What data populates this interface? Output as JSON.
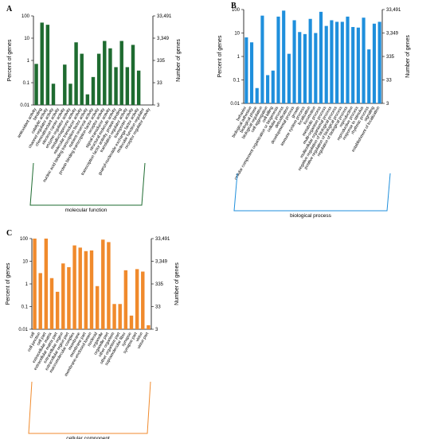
{
  "chart_data": [
    {
      "panel": "A",
      "type": "bar",
      "color": "#1e6b30",
      "ylabel_left": "Percent of genes",
      "ylabel_right": "Number of genes",
      "yscale": "log",
      "ylim": [
        0.01,
        100
      ],
      "yticks_left": [
        "100",
        "10",
        "1",
        "0.1",
        "0.01"
      ],
      "yticks_right": [
        "33,491",
        "3,349",
        "335",
        "33",
        "3"
      ],
      "group_label": "molecular function",
      "categories": [
        "antioxidant activity",
        "binding",
        "catalytic activity",
        "channel regulator activity",
        "chemoattractant activity",
        "electron carrier activity",
        "enzyme regulator activity",
        "metallochaperone activity",
        "molecular transducer activity",
        "nucleic acid binding transcription factor activity",
        "nutrient reservoir activity",
        "protein binding transcription factor activity",
        "receptor activity",
        "signal transducer activity",
        "structural molecule activity",
        "transcription factor activity, protein binding",
        "translation regulator activity",
        "transporter activity",
        "guanyl-nucleotide exchange factor activity",
        "molecular function regulator",
        "receptor regulator activity"
      ],
      "values": [
        0.7,
        50,
        40,
        0.09,
        0.01,
        0.65,
        0.09,
        6.5,
        2,
        0.03,
        0.18,
        2,
        7.5,
        3.5,
        0.5,
        7.5,
        0.5,
        5,
        0.35,
        0.01,
        0.01
      ]
    },
    {
      "panel": "B",
      "type": "bar",
      "color": "#1f8fdc",
      "ylabel_left": "Percent of genes",
      "ylabel_right": "Number of genes",
      "yscale": "log",
      "ylim": [
        0.01,
        100
      ],
      "yticks_left": [
        "100",
        "10",
        "1",
        "0.1",
        "0.01"
      ],
      "yticks_right": [
        "33,491",
        "3,349",
        "335",
        "33",
        "3"
      ],
      "group_label": "biological process",
      "categories": [
        "behavior",
        "biological adhesion",
        "biological phase",
        "biological regulation",
        "cell aggregation",
        "cell killing",
        "cellular component organization or biogenesis",
        "cellular process",
        "detoxification",
        "developmental process",
        "growth",
        "immune system process",
        "localization",
        "locomotion",
        "metabolic process",
        "multi-organism process",
        "multicellular organismal process",
        "negative regulation of biological process",
        "positive regulation of biological process",
        "regulation of biological process",
        "reproduction",
        "reproductive process",
        "response to stimulus",
        "rhythmic process",
        "signaling",
        "establishment of localization"
      ],
      "values": [
        6.5,
        4,
        0.045,
        55,
        0.16,
        0.25,
        50,
        90,
        1.3,
        35,
        11,
        9,
        40,
        10,
        80,
        20,
        35,
        30,
        30,
        50,
        18,
        17,
        45,
        2,
        25,
        30
      ]
    },
    {
      "panel": "C",
      "type": "bar",
      "color": "#f08a2c",
      "ylabel_left": "Percent of genes",
      "ylabel_right": "Number of genes",
      "yscale": "log",
      "ylim": [
        0.01,
        100
      ],
      "yticks_left": [
        "100",
        "10",
        "1",
        "0.1",
        "0.01"
      ],
      "yticks_right": [
        "33,491",
        "3,349",
        "335",
        "33",
        "3"
      ],
      "group_label": "cellular component",
      "categories": [
        "cell",
        "cell junction",
        "cell part",
        "extracellular matrix",
        "extracellular matrix part",
        "extracellular region",
        "extracellular region part",
        "macromolecular complex",
        "membrane",
        "membrane part",
        "membrane-enclosed lumen",
        "nucleoid",
        "organelle",
        "organelle part",
        "other organism",
        "other organism part",
        "supramolecular fiber",
        "synapse",
        "synapse part",
        "virion",
        "virion part"
      ],
      "values": [
        100,
        3,
        100,
        1.8,
        0.45,
        8,
        5.5,
        50,
        40,
        28,
        30,
        0.8,
        90,
        70,
        0.13,
        0.13,
        4,
        0.04,
        4.5,
        3.5,
        0.015
      ]
    }
  ]
}
